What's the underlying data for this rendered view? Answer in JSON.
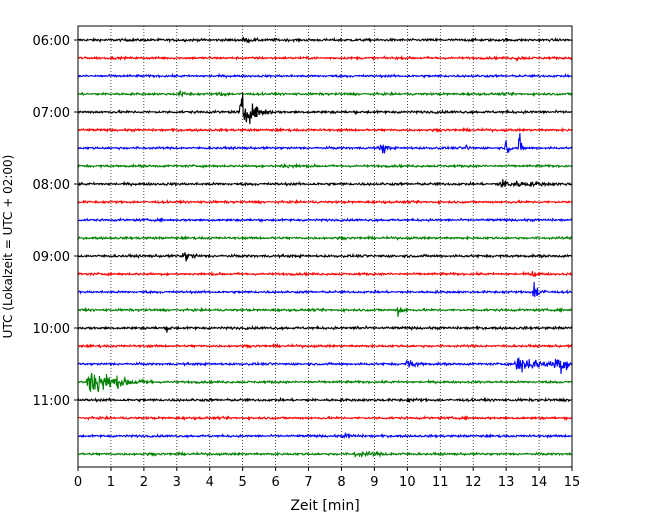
{
  "chart_data": {
    "type": "line",
    "title": "",
    "xlabel": "Zeit  [min]",
    "ylabel": "UTC (Lokalzeit = UTC + 02:00)",
    "xlim": [
      0,
      15
    ],
    "xticks": [
      "0",
      "1",
      "2",
      "3",
      "4",
      "5",
      "6",
      "7",
      "8",
      "9",
      "10",
      "11",
      "12",
      "13",
      "14",
      "15"
    ],
    "ytick_labels": [
      "06:00",
      "07:00",
      "08:00",
      "09:00",
      "10:00",
      "11:00"
    ],
    "ytick_trace_index": [
      0,
      4,
      8,
      12,
      16,
      20
    ],
    "trace_interval_min": 15,
    "grid": "vertical-dotted",
    "trace_colors": [
      "#000000",
      "#ff0000",
      "#0000ff",
      "#008000"
    ],
    "trace_count": 24,
    "traces": [
      {
        "start": "06:00",
        "noise": 0.1,
        "events": [
          {
            "t": 5.0,
            "amp": 0.2,
            "dur": 0.6
          }
        ]
      },
      {
        "start": "06:15",
        "noise": 0.09,
        "events": [
          {
            "t": 13.3,
            "amp": 0.12,
            "dur": 0.6
          }
        ]
      },
      {
        "start": "06:30",
        "noise": 0.09,
        "events": []
      },
      {
        "start": "06:45",
        "noise": 0.09,
        "events": [
          {
            "t": 3.1,
            "amp": 0.18,
            "dur": 0.5
          },
          {
            "t": 4.3,
            "amp": 0.25,
            "dur": 0.4
          }
        ]
      },
      {
        "start": "07:00",
        "noise": 0.1,
        "events": [
          {
            "t": 4.95,
            "amp": 1.6,
            "dur": 1.0
          }
        ]
      },
      {
        "start": "07:15",
        "noise": 0.09,
        "events": []
      },
      {
        "start": "07:30",
        "noise": 0.09,
        "events": [
          {
            "t": 9.2,
            "amp": 0.9,
            "dur": 0.3
          },
          {
            "t": 11.8,
            "amp": 0.3,
            "dur": 0.2
          },
          {
            "t": 13.0,
            "amp": 1.0,
            "dur": 0.2
          },
          {
            "t": 13.4,
            "amp": 1.2,
            "dur": 0.2
          }
        ]
      },
      {
        "start": "07:45",
        "noise": 0.09,
        "events": [
          {
            "t": 6.2,
            "amp": 0.15,
            "dur": 1.0
          }
        ]
      },
      {
        "start": "08:00",
        "noise": 0.1,
        "events": [
          {
            "t": 12.8,
            "amp": 0.35,
            "dur": 2.2
          }
        ]
      },
      {
        "start": "08:15",
        "noise": 0.09,
        "events": []
      },
      {
        "start": "08:30",
        "noise": 0.09,
        "events": []
      },
      {
        "start": "08:45",
        "noise": 0.09,
        "events": []
      },
      {
        "start": "09:00",
        "noise": 0.1,
        "events": [
          {
            "t": 3.2,
            "amp": 0.5,
            "dur": 0.6
          }
        ]
      },
      {
        "start": "09:15",
        "noise": 0.09,
        "events": [
          {
            "t": 13.8,
            "amp": 0.4,
            "dur": 0.3
          }
        ]
      },
      {
        "start": "09:30",
        "noise": 0.09,
        "events": [
          {
            "t": 13.85,
            "amp": 1.1,
            "dur": 0.4
          }
        ]
      },
      {
        "start": "09:45",
        "noise": 0.09,
        "events": [
          {
            "t": 9.7,
            "amp": 0.6,
            "dur": 0.4
          }
        ]
      },
      {
        "start": "10:00",
        "noise": 0.1,
        "events": [
          {
            "t": 2.7,
            "amp": 0.25,
            "dur": 0.3
          },
          {
            "t": 8.5,
            "amp": 0.2,
            "dur": 0.3
          }
        ]
      },
      {
        "start": "10:15",
        "noise": 0.09,
        "events": []
      },
      {
        "start": "10:30",
        "noise": 0.09,
        "events": [
          {
            "t": 10.0,
            "amp": 0.5,
            "dur": 0.6
          },
          {
            "t": 13.3,
            "amp": 0.85,
            "dur": 1.8
          },
          {
            "t": 14.5,
            "amp": 0.9,
            "dur": 1.0
          }
        ]
      },
      {
        "start": "10:45",
        "noise": 0.09,
        "events": [
          {
            "t": 0.3,
            "amp": 1.5,
            "dur": 2.0
          }
        ]
      },
      {
        "start": "11:00",
        "noise": 0.1,
        "events": [
          {
            "t": 10.0,
            "amp": 0.15,
            "dur": 0.6
          }
        ]
      },
      {
        "start": "11:15",
        "noise": 0.09,
        "events": []
      },
      {
        "start": "11:30",
        "noise": 0.09,
        "events": [
          {
            "t": 8.1,
            "amp": 0.15,
            "dur": 0.8
          }
        ]
      },
      {
        "start": "11:45",
        "noise": 0.09,
        "events": [
          {
            "t": 8.4,
            "amp": 0.18,
            "dur": 2.0
          }
        ]
      }
    ]
  }
}
